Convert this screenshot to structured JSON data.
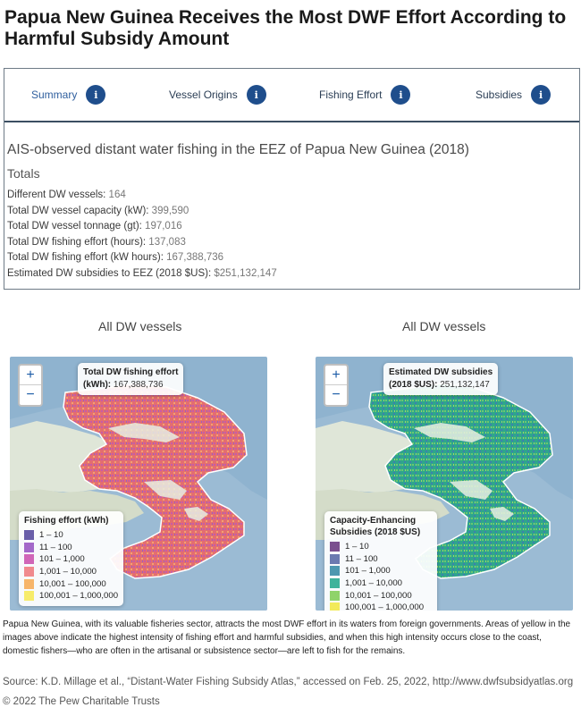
{
  "title": "Papua New Guinea Receives the Most DWF Effort According to Harmful Subsidy Amount",
  "tabs": [
    {
      "label": "Summary",
      "icon": "info-icon",
      "active": true
    },
    {
      "label": "Vessel Origins",
      "icon": "info-icon",
      "active": false
    },
    {
      "label": "Fishing Effort",
      "icon": "info-icon",
      "active": false
    },
    {
      "label": "Subsidies",
      "icon": "info-icon",
      "active": false
    }
  ],
  "info_glyph": "i",
  "stats": {
    "heading": "AIS-observed distant water fishing in the EEZ of Papua New Guinea (2018)",
    "subheading": "Totals",
    "rows": [
      {
        "label": "Different DW vessels: ",
        "value": "164"
      },
      {
        "label": "Total DW vessel capacity (kW): ",
        "value": "399,590"
      },
      {
        "label": "Total DW vessel tonnage (gt): ",
        "value": "197,016"
      },
      {
        "label": "Total DW fishing effort (hours): ",
        "value": "137,083"
      },
      {
        "label": "Total DW fishing effort (kW hours): ",
        "value": "167,388,736"
      },
      {
        "label": "Estimated DW subsidies to EEZ (2018 $US): ",
        "value": "$251,132,147"
      }
    ]
  },
  "maps": [
    {
      "heading": "All DW vessels",
      "zoom_in": "+",
      "zoom_out": "−",
      "tooltip_title": "Total DW fishing effort",
      "tooltip_unit": "(kWh): ",
      "tooltip_value": "167,388,736",
      "legend_title": "Fishing effort (kWh)",
      "legend": [
        {
          "label": "1 – 10",
          "color": "#6a5fa8"
        },
        {
          "label": "11 – 100",
          "color": "#a368c9"
        },
        {
          "label": "101 – 1,000",
          "color": "#d066b8"
        },
        {
          "label": "1,001 – 10,000",
          "color": "#f08a8e"
        },
        {
          "label": "10,001 – 100,000",
          "color": "#f7b56a"
        },
        {
          "label": "100,001 – 1,000,000",
          "color": "#f7ec6a"
        }
      ]
    },
    {
      "heading": "All DW vessels",
      "zoom_in": "+",
      "zoom_out": "−",
      "tooltip_title": "Estimated DW subsidies",
      "tooltip_unit": "(2018 $US): ",
      "tooltip_value": "251,132,147",
      "legend_title": "Capacity-Enhancing Subsidies (2018 $US)",
      "legend": [
        {
          "label": "1 – 10",
          "color": "#7b4f8e"
        },
        {
          "label": "11 – 100",
          "color": "#6c7ab0"
        },
        {
          "label": "101 – 1,000",
          "color": "#4e98b0"
        },
        {
          "label": "1,001 – 10,000",
          "color": "#3fb39b"
        },
        {
          "label": "10,001 – 100,000",
          "color": "#8fd36a"
        },
        {
          "label": "100,001 – 1,000,000",
          "color": "#f2ea5a"
        }
      ]
    }
  ],
  "caption": "Papua New Guinea, with its valuable fisheries sector, attracts the most DWF effort in its waters from foreign governments. Areas of yellow in the images above indicate the highest intensity of fishing effort and harmful subsidies, and when this high intensity occurs close to the coast, domestic fishers—who are often in the artisanal or subsistence sector—are left to fish for the remains.",
  "source": "Source: K.D. Millage et al., “Distant-Water Fishing Subsidy Atlas,” accessed on Feb. 25, 2022, http://www.dwfsubsidyatlas.org",
  "copyright": "© 2022 The Pew Charitable Trusts",
  "colors": {
    "tab_icon": "#1f4e8c",
    "tab_divider": "#3b4f62",
    "sea": "#90b4cf",
    "land": "#dbe3d6",
    "eez_fill_effort": "#e0736e",
    "eez_fill_subsidy": "#2f9f8a"
  }
}
